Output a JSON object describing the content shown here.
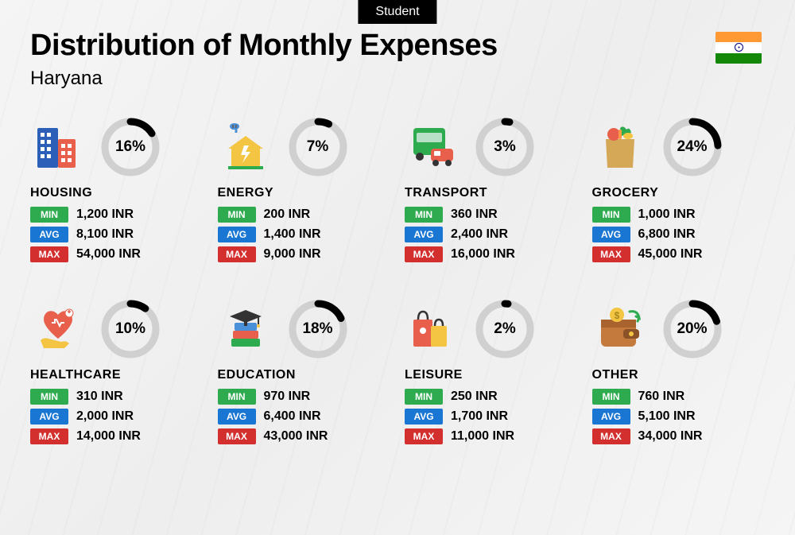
{
  "tag": "Student",
  "title": "Distribution of Monthly Expenses",
  "subtitle": "Haryana",
  "flag": {
    "saffron": "#ff9933",
    "white": "#ffffff",
    "green": "#138808",
    "chakra": "#000080"
  },
  "donut": {
    "radius": 32,
    "stroke": 9,
    "track_color": "#d0d0d0",
    "fill_color": "#000000",
    "circumference": 201.06
  },
  "badges": {
    "min": {
      "label": "MIN",
      "color": "#2eab4f"
    },
    "avg": {
      "label": "AVG",
      "color": "#1976d2"
    },
    "max": {
      "label": "MAX",
      "color": "#d32f2f"
    }
  },
  "currency": "INR",
  "categories": [
    {
      "key": "housing",
      "name": "HOUSING",
      "pct": 16,
      "pct_label": "16%",
      "min": "1,200 INR",
      "avg": "8,100 INR",
      "max": "54,000 INR",
      "icon": "buildings"
    },
    {
      "key": "energy",
      "name": "ENERGY",
      "pct": 7,
      "pct_label": "7%",
      "min": "200 INR",
      "avg": "1,400 INR",
      "max": "9,000 INR",
      "icon": "energy-house"
    },
    {
      "key": "transport",
      "name": "TRANSPORT",
      "pct": 3,
      "pct_label": "3%",
      "min": "360 INR",
      "avg": "2,400 INR",
      "max": "16,000 INR",
      "icon": "bus-car"
    },
    {
      "key": "grocery",
      "name": "GROCERY",
      "pct": 24,
      "pct_label": "24%",
      "min": "1,000 INR",
      "avg": "6,800 INR",
      "max": "45,000 INR",
      "icon": "grocery-bag"
    },
    {
      "key": "healthcare",
      "name": "HEALTHCARE",
      "pct": 10,
      "pct_label": "10%",
      "min": "310 INR",
      "avg": "2,000 INR",
      "max": "14,000 INR",
      "icon": "heart-hand"
    },
    {
      "key": "education",
      "name": "EDUCATION",
      "pct": 18,
      "pct_label": "18%",
      "min": "970 INR",
      "avg": "6,400 INR",
      "max": "43,000 INR",
      "icon": "books-cap"
    },
    {
      "key": "leisure",
      "name": "LEISURE",
      "pct": 2,
      "pct_label": "2%",
      "min": "250 INR",
      "avg": "1,700 INR",
      "max": "11,000 INR",
      "icon": "shopping-bags"
    },
    {
      "key": "other",
      "name": "OTHER",
      "pct": 20,
      "pct_label": "20%",
      "min": "760 INR",
      "avg": "5,100 INR",
      "max": "34,000 INR",
      "icon": "wallet"
    }
  ],
  "icons": {
    "buildings": {
      "colors": [
        "#2b5fb8",
        "#e8604c",
        "#f4a93c"
      ]
    },
    "energy-house": {
      "colors": [
        "#f4c542",
        "#4a90d9",
        "#2eab4f"
      ]
    },
    "bus-car": {
      "colors": [
        "#2eab4f",
        "#e8604c",
        "#333"
      ]
    },
    "grocery-bag": {
      "colors": [
        "#d4a857",
        "#e8604c",
        "#2eab4f",
        "#f4c542"
      ]
    },
    "heart-hand": {
      "colors": [
        "#e8604c",
        "#f4c542",
        "#fff"
      ]
    },
    "books-cap": {
      "colors": [
        "#333",
        "#e8604c",
        "#2eab4f",
        "#4a90d9"
      ]
    },
    "shopping-bags": {
      "colors": [
        "#e8604c",
        "#f4c542",
        "#333"
      ]
    },
    "wallet": {
      "colors": [
        "#c47a3d",
        "#f4c542",
        "#2eab4f"
      ]
    }
  }
}
